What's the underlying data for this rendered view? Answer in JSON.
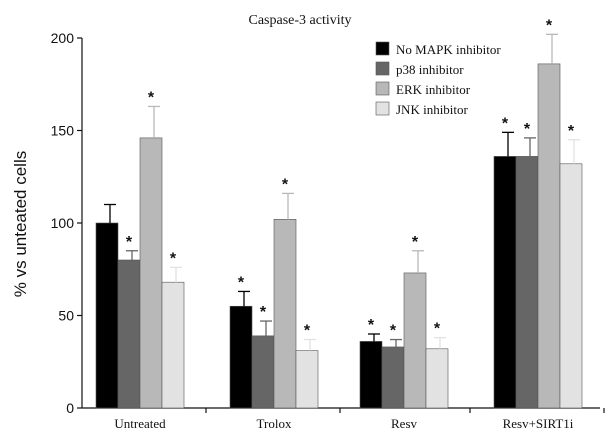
{
  "chart_data": {
    "type": "bar",
    "title": "Caspase-3 activity",
    "ylabel": "% vs unteated cells",
    "xlabel": "",
    "ylim": [
      0,
      200
    ],
    "yticks": [
      0,
      50,
      100,
      150,
      200
    ],
    "legend_position": "top-right",
    "categories": [
      "Untreated",
      "Trolox",
      "Resv",
      "Resv+SIRT1i"
    ],
    "series": [
      {
        "name": "No MAPK inhibitor",
        "color": "#000000",
        "values": [
          100,
          55,
          36,
          136
        ],
        "errors": [
          10,
          8,
          4,
          13
        ],
        "significant": [
          false,
          true,
          true,
          true
        ]
      },
      {
        "name": "p38 inhibitor",
        "color": "#666666",
        "values": [
          80,
          39,
          33,
          136
        ],
        "errors": [
          5,
          8,
          4,
          10
        ],
        "significant": [
          true,
          true,
          true,
          true
        ]
      },
      {
        "name": "ERK inhibitor",
        "color": "#b8b8b8",
        "values": [
          146,
          102,
          73,
          186
        ],
        "errors": [
          17,
          14,
          12,
          16
        ],
        "significant": [
          true,
          true,
          true,
          true
        ]
      },
      {
        "name": "JNK inhibitor",
        "color": "#e2e2e2",
        "values": [
          68,
          31,
          32,
          132
        ],
        "errors": [
          8,
          6,
          6,
          13
        ],
        "significant": [
          true,
          true,
          true,
          true
        ]
      }
    ],
    "significance_marker": "*"
  }
}
